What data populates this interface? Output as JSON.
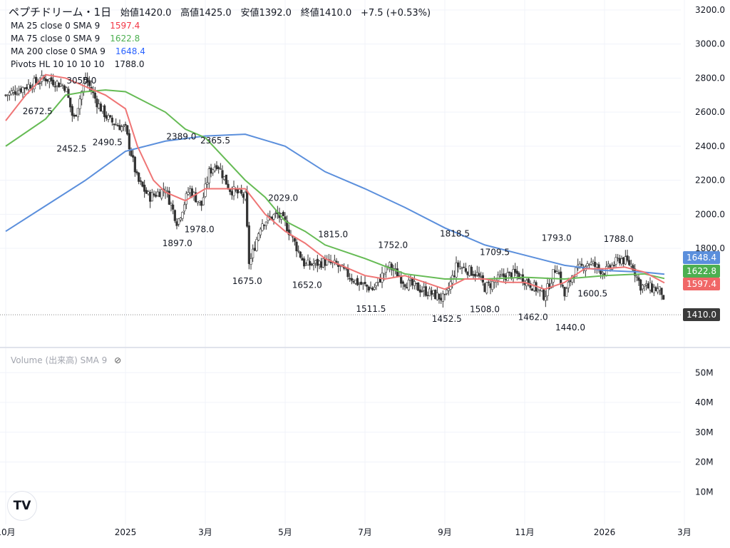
{
  "header": {
    "symbol": "ペプチドリーム・1日",
    "open": "始値1420.0",
    "high": "高値1425.0",
    "low": "安値1392.0",
    "close": "終値1410.0",
    "change": "+7.5 (+0.53%)"
  },
  "indicators": [
    {
      "label": "MA 25 close 0 SMA 9",
      "value": "1597.4",
      "color": "#f23645"
    },
    {
      "label": "MA 75 close 0 SMA 9",
      "value": "1622.8",
      "color": "#4caf50"
    },
    {
      "label": "MA 200 close 0 SMA 9",
      "value": "1648.4",
      "color": "#2962ff"
    },
    {
      "label": "Pivots HL 10 10 10 10",
      "value": "1788.0",
      "color": "#131722"
    }
  ],
  "volume_legend": "Volume (出来高) SMA 9",
  "colors": {
    "ma25": "#ef7575",
    "ma75": "#66bb55",
    "ma200": "#5b8fdc",
    "last": "#3a3a3a"
  },
  "chart_data": {
    "type": "candlestick",
    "x_unit": "months since 2024-10-01",
    "price_axis": {
      "ticks": [
        3200,
        3000,
        2800,
        2600,
        2400,
        2200,
        2000,
        1800
      ],
      "range": [
        1400,
        3200
      ]
    },
    "volume_axis": {
      "ticks": [
        "50M",
        "40M",
        "30M",
        "20M",
        "10M"
      ],
      "values": [
        50,
        40,
        30,
        20,
        10
      ]
    },
    "time_axis": [
      {
        "m": 0,
        "label": "10月"
      },
      {
        "m": 3,
        "label": "2025"
      },
      {
        "m": 5,
        "label": "3月"
      },
      {
        "m": 7,
        "label": "5月"
      },
      {
        "m": 9,
        "label": "7月"
      },
      {
        "m": 11,
        "label": "9月"
      },
      {
        "m": 13,
        "label": "11月"
      },
      {
        "m": 15,
        "label": "2026"
      },
      {
        "m": 17,
        "label": "3月"
      }
    ],
    "close_path": [
      [
        0,
        2700
      ],
      [
        0.5,
        2750
      ],
      [
        1,
        2800
      ],
      [
        1.5,
        2750
      ],
      [
        1.7,
        2550
      ],
      [
        2,
        2800
      ],
      [
        2.3,
        2650
      ],
      [
        2.6,
        2550
      ],
      [
        3,
        2500
      ],
      [
        3.3,
        2200
      ],
      [
        3.6,
        2100
      ],
      [
        4,
        2150
      ],
      [
        4.3,
        1950
      ],
      [
        4.6,
        2150
      ],
      [
        4.9,
        2050
      ],
      [
        5.1,
        2250
      ],
      [
        5.3,
        2300
      ],
      [
        5.6,
        2150
      ],
      [
        6,
        2100
      ],
      [
        6.1,
        1700
      ],
      [
        6.4,
        1950
      ],
      [
        6.8,
        2000
      ],
      [
        7,
        1950
      ],
      [
        7.2,
        1850
      ],
      [
        7.5,
        1700
      ],
      [
        8,
        1720
      ],
      [
        8.3,
        1700
      ],
      [
        8.8,
        1600
      ],
      [
        9.2,
        1560
      ],
      [
        9.6,
        1700
      ],
      [
        10,
        1600
      ],
      [
        10.5,
        1550
      ],
      [
        11,
        1500
      ],
      [
        11.3,
        1700
      ],
      [
        11.8,
        1650
      ],
      [
        12,
        1570
      ],
      [
        12.5,
        1640
      ],
      [
        12.8,
        1650
      ],
      [
        13.2,
        1580
      ],
      [
        13.5,
        1520
      ],
      [
        13.8,
        1700
      ],
      [
        14,
        1520
      ],
      [
        14.2,
        1650
      ],
      [
        14.6,
        1720
      ],
      [
        15,
        1660
      ],
      [
        15.4,
        1740
      ],
      [
        15.7,
        1700
      ],
      [
        15.9,
        1580
      ],
      [
        16.3,
        1560
      ],
      [
        16.45,
        1540
      ],
      [
        16.5,
        1410
      ]
    ],
    "ma25": [
      [
        0,
        2550
      ],
      [
        0.5,
        2700
      ],
      [
        1,
        2820
      ],
      [
        1.5,
        2800
      ],
      [
        2,
        2750
      ],
      [
        2.5,
        2700
      ],
      [
        3,
        2620
      ],
      [
        3.3,
        2400
      ],
      [
        3.7,
        2200
      ],
      [
        4,
        2130
      ],
      [
        4.5,
        2080
      ],
      [
        5,
        2150
      ],
      [
        5.5,
        2150
      ],
      [
        6,
        2150
      ],
      [
        6.5,
        2000
      ],
      [
        7,
        1900
      ],
      [
        7.5,
        1830
      ],
      [
        8,
        1740
      ],
      [
        8.5,
        1690
      ],
      [
        9,
        1640
      ],
      [
        9.5,
        1620
      ],
      [
        10,
        1640
      ],
      [
        10.5,
        1600
      ],
      [
        11,
        1560
      ],
      [
        11.5,
        1620
      ],
      [
        12,
        1620
      ],
      [
        12.5,
        1600
      ],
      [
        13,
        1600
      ],
      [
        13.5,
        1560
      ],
      [
        14,
        1600
      ],
      [
        14.5,
        1680
      ],
      [
        15,
        1680
      ],
      [
        15.5,
        1690
      ],
      [
        16,
        1660
      ],
      [
        16.5,
        1597.4
      ]
    ],
    "ma75": [
      [
        0,
        2400
      ],
      [
        1,
        2560
      ],
      [
        1.5,
        2700
      ],
      [
        2,
        2720
      ],
      [
        2.5,
        2730
      ],
      [
        3,
        2720
      ],
      [
        4,
        2600
      ],
      [
        4.5,
        2500
      ],
      [
        5,
        2450
      ],
      [
        6,
        2200
      ],
      [
        6.5,
        2100
      ],
      [
        7,
        1960
      ],
      [
        7.5,
        1900
      ],
      [
        8,
        1820
      ],
      [
        9,
        1740
      ],
      [
        10,
        1650
      ],
      [
        11,
        1620
      ],
      [
        12,
        1620
      ],
      [
        13,
        1630
      ],
      [
        14,
        1620
      ],
      [
        15,
        1640
      ],
      [
        16,
        1650
      ],
      [
        16.5,
        1622.8
      ]
    ],
    "ma200": [
      [
        0,
        1900
      ],
      [
        1,
        2050
      ],
      [
        2,
        2200
      ],
      [
        3,
        2370
      ],
      [
        4,
        2430
      ],
      [
        5,
        2460
      ],
      [
        6,
        2470
      ],
      [
        7,
        2400
      ],
      [
        8,
        2250
      ],
      [
        9,
        2150
      ],
      [
        10,
        2040
      ],
      [
        11,
        1920
      ],
      [
        12,
        1820
      ],
      [
        13,
        1760
      ],
      [
        14,
        1700
      ],
      [
        15,
        1670
      ],
      [
        16,
        1660
      ],
      [
        16.5,
        1648.4
      ]
    ],
    "pivots": [
      {
        "m": 1.9,
        "v": 3055,
        "t": "3055.0",
        "hi": true
      },
      {
        "m": 0.8,
        "v": 2672.5,
        "t": "2672.5"
      },
      {
        "m": 1.65,
        "v": 2452.5,
        "t": "2452.5"
      },
      {
        "m": 2.55,
        "v": 2490.5,
        "t": "2490.5"
      },
      {
        "m": 4.4,
        "v": 2389,
        "t": "2389.0",
        "hi": true
      },
      {
        "m": 5.25,
        "v": 2365.5,
        "t": "2365.5",
        "hi": true
      },
      {
        "m": 4.85,
        "v": 1978,
        "t": "1978.0"
      },
      {
        "m": 4.3,
        "v": 1897,
        "t": "1897.0"
      },
      {
        "m": 6.95,
        "v": 2029,
        "t": "2029.0",
        "hi": true
      },
      {
        "m": 6.05,
        "v": 1675,
        "t": "1675.0"
      },
      {
        "m": 8.2,
        "v": 1815,
        "t": "1815.0",
        "hi": true
      },
      {
        "m": 7.55,
        "v": 1652,
        "t": "1652.0"
      },
      {
        "m": 9.7,
        "v": 1752,
        "t": "1752.0",
        "hi": true
      },
      {
        "m": 9.15,
        "v": 1511.5,
        "t": "1511.5"
      },
      {
        "m": 11.25,
        "v": 1818.5,
        "t": "1818.5",
        "hi": true
      },
      {
        "m": 11.05,
        "v": 1452.5,
        "t": "1452.5"
      },
      {
        "m": 12.25,
        "v": 1709.5,
        "t": "1709.5",
        "hi": true
      },
      {
        "m": 12,
        "v": 1508,
        "t": "1508.0"
      },
      {
        "m": 13.8,
        "v": 1793,
        "t": "1793.0",
        "hi": true
      },
      {
        "m": 13.35,
        "v": 1462,
        "t": "1462.0"
      },
      {
        "m": 14,
        "v": 1440,
        "t": "1440.0"
      },
      {
        "m": 15.35,
        "v": 1788,
        "t": "1788.0",
        "hi": true
      },
      {
        "m": 14.7,
        "v": 1600.5,
        "t": "1600.5"
      }
    ],
    "last_labels": [
      {
        "v": 1648.4,
        "t": "1648.4",
        "c": "#5b8fdc"
      },
      {
        "v": 1622.8,
        "t": "1622.8",
        "c": "#4caf50"
      },
      {
        "v": 1597.4,
        "t": "1597.4",
        "c": "#f06767"
      },
      {
        "v": 1410,
        "t": "1410.0",
        "c": "#3a3a3a"
      }
    ]
  }
}
